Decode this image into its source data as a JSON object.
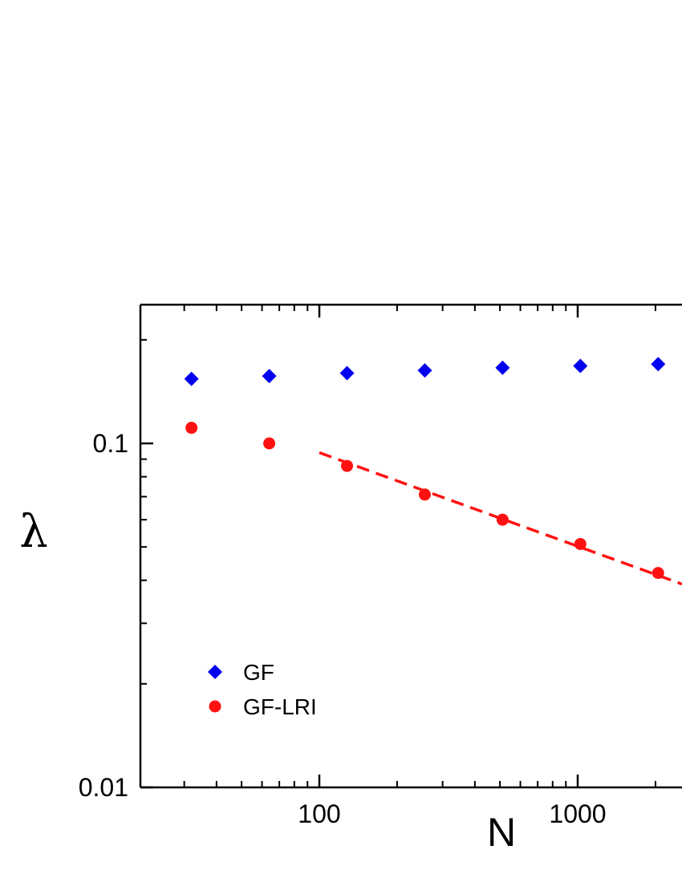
{
  "chart_data": {
    "type": "scatter",
    "title": "",
    "xlabel": "N",
    "ylabel": "λ",
    "x_scale": "log",
    "y_scale": "log",
    "xlim": [
      16,
      3000
    ],
    "ylim": [
      0.01,
      0.25
    ],
    "x_ticks": [
      {
        "value": 100,
        "label": "100"
      },
      {
        "value": 1000,
        "label": "1000"
      }
    ],
    "y_ticks": [
      {
        "value": 0.01,
        "label": "0.01"
      },
      {
        "value": 0.1,
        "label": "0.1"
      }
    ],
    "legend_position": "bottom-left",
    "series": [
      {
        "name": "GF",
        "color": "#0000ee",
        "marker": "diamond",
        "x": [
          32,
          64,
          128,
          256,
          512,
          1024,
          2048
        ],
        "y": [
          0.154,
          0.157,
          0.16,
          0.163,
          0.166,
          0.168,
          0.17
        ]
      },
      {
        "name": "GF-LRI",
        "color": "#ff1111",
        "marker": "circle",
        "x": [
          32,
          64,
          128,
          256,
          512,
          1024,
          2048
        ],
        "y": [
          0.111,
          0.1,
          0.086,
          0.071,
          0.06,
          0.051,
          0.042
        ]
      }
    ],
    "fit_line": {
      "color": "#ff1111",
      "style": "dashed",
      "x": [
        100,
        3000
      ],
      "y": [
        0.094,
        0.039
      ]
    }
  }
}
